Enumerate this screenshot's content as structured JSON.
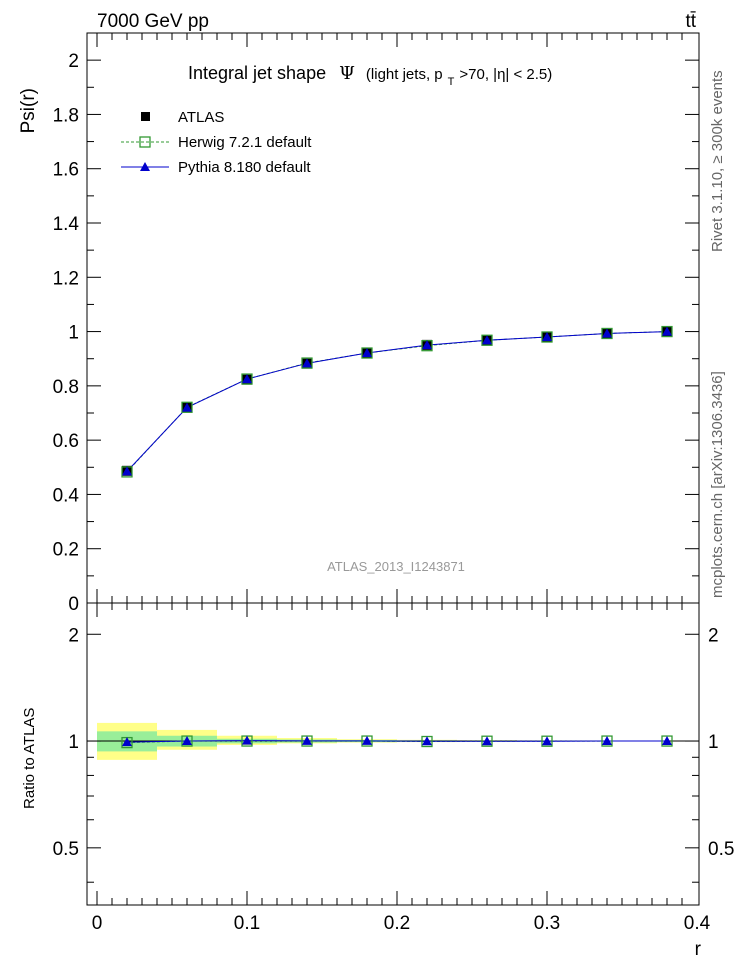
{
  "header": {
    "energy_label": "7000 GeV pp",
    "process_label": "tt̄"
  },
  "side_labels": {
    "rivet": "Rivet 3.1.10, ≥ 300k events",
    "mcplots": "mcplots.cern.ch [arXiv:1306.3436]"
  },
  "chart_data": [
    {
      "type": "line",
      "title_main": "Integral jet shape",
      "title_symbol": "Ψ",
      "title_detail": "(light jets, p",
      "title_sub": "T",
      "title_rest": ">70, |η| < 2.5)",
      "ylabel": "Psi(r)",
      "watermark": "ATLAS_2013_I1243871",
      "xlim": [
        0,
        0.4
      ],
      "ylim": [
        0,
        2.1
      ],
      "yticks": [
        "0",
        "0.2",
        "0.4",
        "0.6",
        "0.8",
        "1",
        "1.2",
        "1.4",
        "1.6",
        "1.8",
        "2"
      ],
      "x": [
        0.02,
        0.06,
        0.1,
        0.14,
        0.18,
        0.22,
        0.26,
        0.3,
        0.34,
        0.38
      ],
      "series": [
        {
          "name": "ATLAS",
          "color": "#000000",
          "marker": "square",
          "values": [
            0.487,
            0.72,
            0.823,
            0.882,
            0.92,
            0.951,
            0.969,
            0.981,
            0.993,
            1.0
          ]
        },
        {
          "name": "Herwig 7.2.1 default",
          "color": "#339933",
          "marker": "open-square",
          "line": "dashed",
          "values": [
            0.483,
            0.721,
            0.825,
            0.884,
            0.921,
            0.948,
            0.968,
            0.98,
            0.993,
            1.0
          ]
        },
        {
          "name": "Pythia 8.180 default",
          "color": "#0000cc",
          "marker": "triangle",
          "line": "solid",
          "values": [
            0.485,
            0.72,
            0.825,
            0.883,
            0.921,
            0.95,
            0.968,
            0.98,
            0.993,
            1.0
          ]
        }
      ],
      "legend_position": "top-left"
    },
    {
      "type": "line",
      "ylabel": "Ratio to ATLAS",
      "xlabel": "r",
      "xlim": [
        0,
        0.4
      ],
      "ylim": [
        0.345,
        2.45
      ],
      "yticks": [
        "0.5",
        "1",
        "2"
      ],
      "xticks": [
        "0",
        "0.1",
        "0.2",
        "0.3",
        "0.4"
      ],
      "bands": {
        "edges": [
          0.0,
          0.04,
          0.08,
          0.12,
          0.16,
          0.2,
          0.24,
          0.28
        ],
        "stat_color": "#99ee99",
        "total_color": "#ffff88",
        "stat_lo": [
          0.935,
          0.965,
          0.985,
          0.99,
          0.993,
          0.995,
          0.996
        ],
        "stat_hi": [
          1.065,
          1.035,
          1.015,
          1.01,
          1.007,
          1.005,
          1.004
        ],
        "total_lo": [
          0.885,
          0.945,
          0.975,
          0.985,
          0.99,
          0.993,
          0.995
        ],
        "total_hi": [
          1.125,
          1.075,
          1.035,
          1.02,
          1.012,
          1.008,
          1.006
        ]
      },
      "series": [
        {
          "name": "Herwig 7.2.1 default",
          "color": "#339933",
          "values": [
            0.99,
            1.0,
            1.0,
            1.0,
            1.0,
            0.997,
            0.999,
            0.999,
            1.0,
            1.0
          ]
        },
        {
          "name": "Pythia 8.180 default",
          "color": "#0000cc",
          "values": [
            0.993,
            1.0,
            1.003,
            1.001,
            1.001,
            0.999,
            0.999,
            0.999,
            1.0,
            1.0
          ]
        }
      ]
    }
  ]
}
